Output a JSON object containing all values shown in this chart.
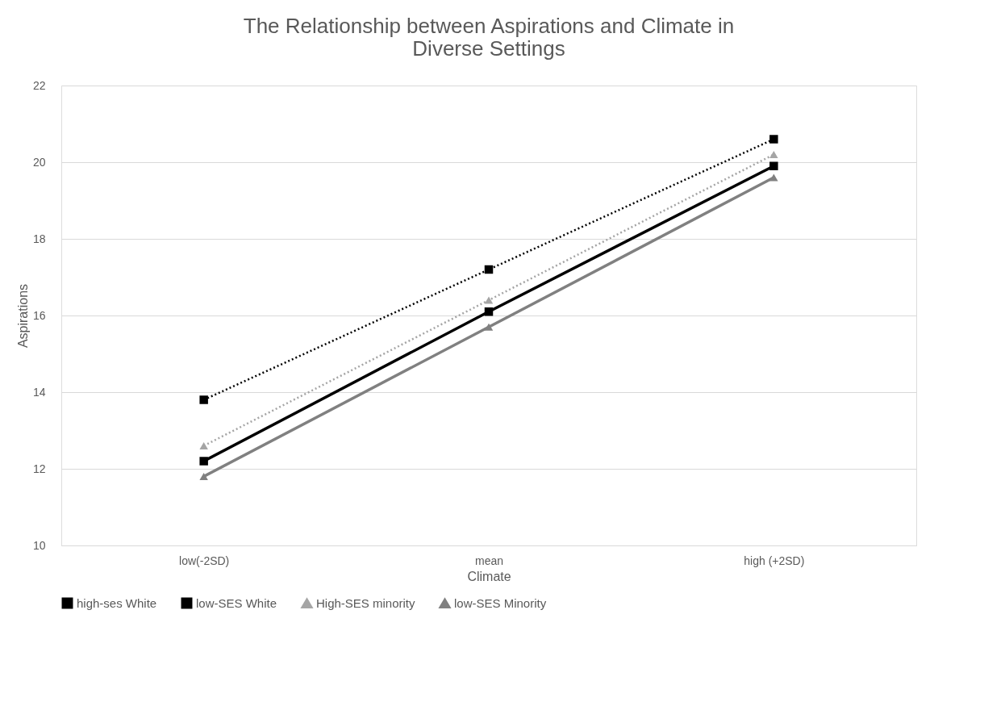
{
  "chart_data": {
    "type": "line",
    "title": "The Relationship between Aspirations and Climate in Diverse Settings",
    "xlabel": "Climate",
    "ylabel": "Aspirations",
    "categories": [
      "low(-2SD)",
      "mean",
      "high (+2SD)"
    ],
    "series": [
      {
        "name": "high-ses White",
        "color": "#000000",
        "marker": "square",
        "line_style": "dotted",
        "values": [
          13.8,
          17.2,
          20.6
        ]
      },
      {
        "name": "low-SES White",
        "color": "#000000",
        "marker": "square",
        "line_style": "solid",
        "values": [
          12.2,
          16.1,
          19.9
        ]
      },
      {
        "name": "High-SES minority",
        "color": "#a5a5a5",
        "marker": "triangle",
        "line_style": "dotted",
        "values": [
          12.6,
          16.4,
          20.2
        ]
      },
      {
        "name": "low-SES Minority",
        "color": "#808080",
        "marker": "triangle",
        "line_style": "solid",
        "values": [
          11.8,
          15.7,
          19.6
        ]
      }
    ],
    "ylim": [
      10,
      22
    ],
    "yticks": [
      10,
      12,
      14,
      16,
      18,
      20,
      22
    ],
    "grid": "y",
    "legend": "bottom"
  }
}
